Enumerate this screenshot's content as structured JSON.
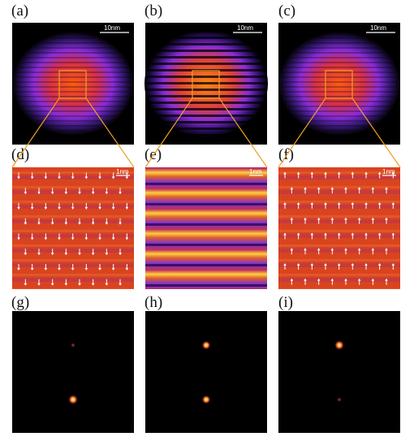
{
  "panels": {
    "a": {
      "label": "(a)",
      "scalebar": "10nm"
    },
    "b": {
      "label": "(b)",
      "scalebar": "10nm"
    },
    "c": {
      "label": "(c)",
      "scalebar": "10nm"
    },
    "d": {
      "label": "(d)",
      "scalebar": "1nm",
      "arrow_direction": "down"
    },
    "e": {
      "label": "(e)",
      "scalebar": "1nm"
    },
    "f": {
      "label": "(f)",
      "scalebar": "1nm",
      "arrow_direction": "up"
    },
    "g": {
      "label": "(g)"
    },
    "h": {
      "label": "(h)"
    },
    "i": {
      "label": "(i)"
    }
  },
  "colors": {
    "zoom_box": "#f0a020",
    "background_dark": "#000000",
    "arrow": "#ffffff",
    "map_red": "#d9441f",
    "map_purple": "#7a2fd6"
  }
}
